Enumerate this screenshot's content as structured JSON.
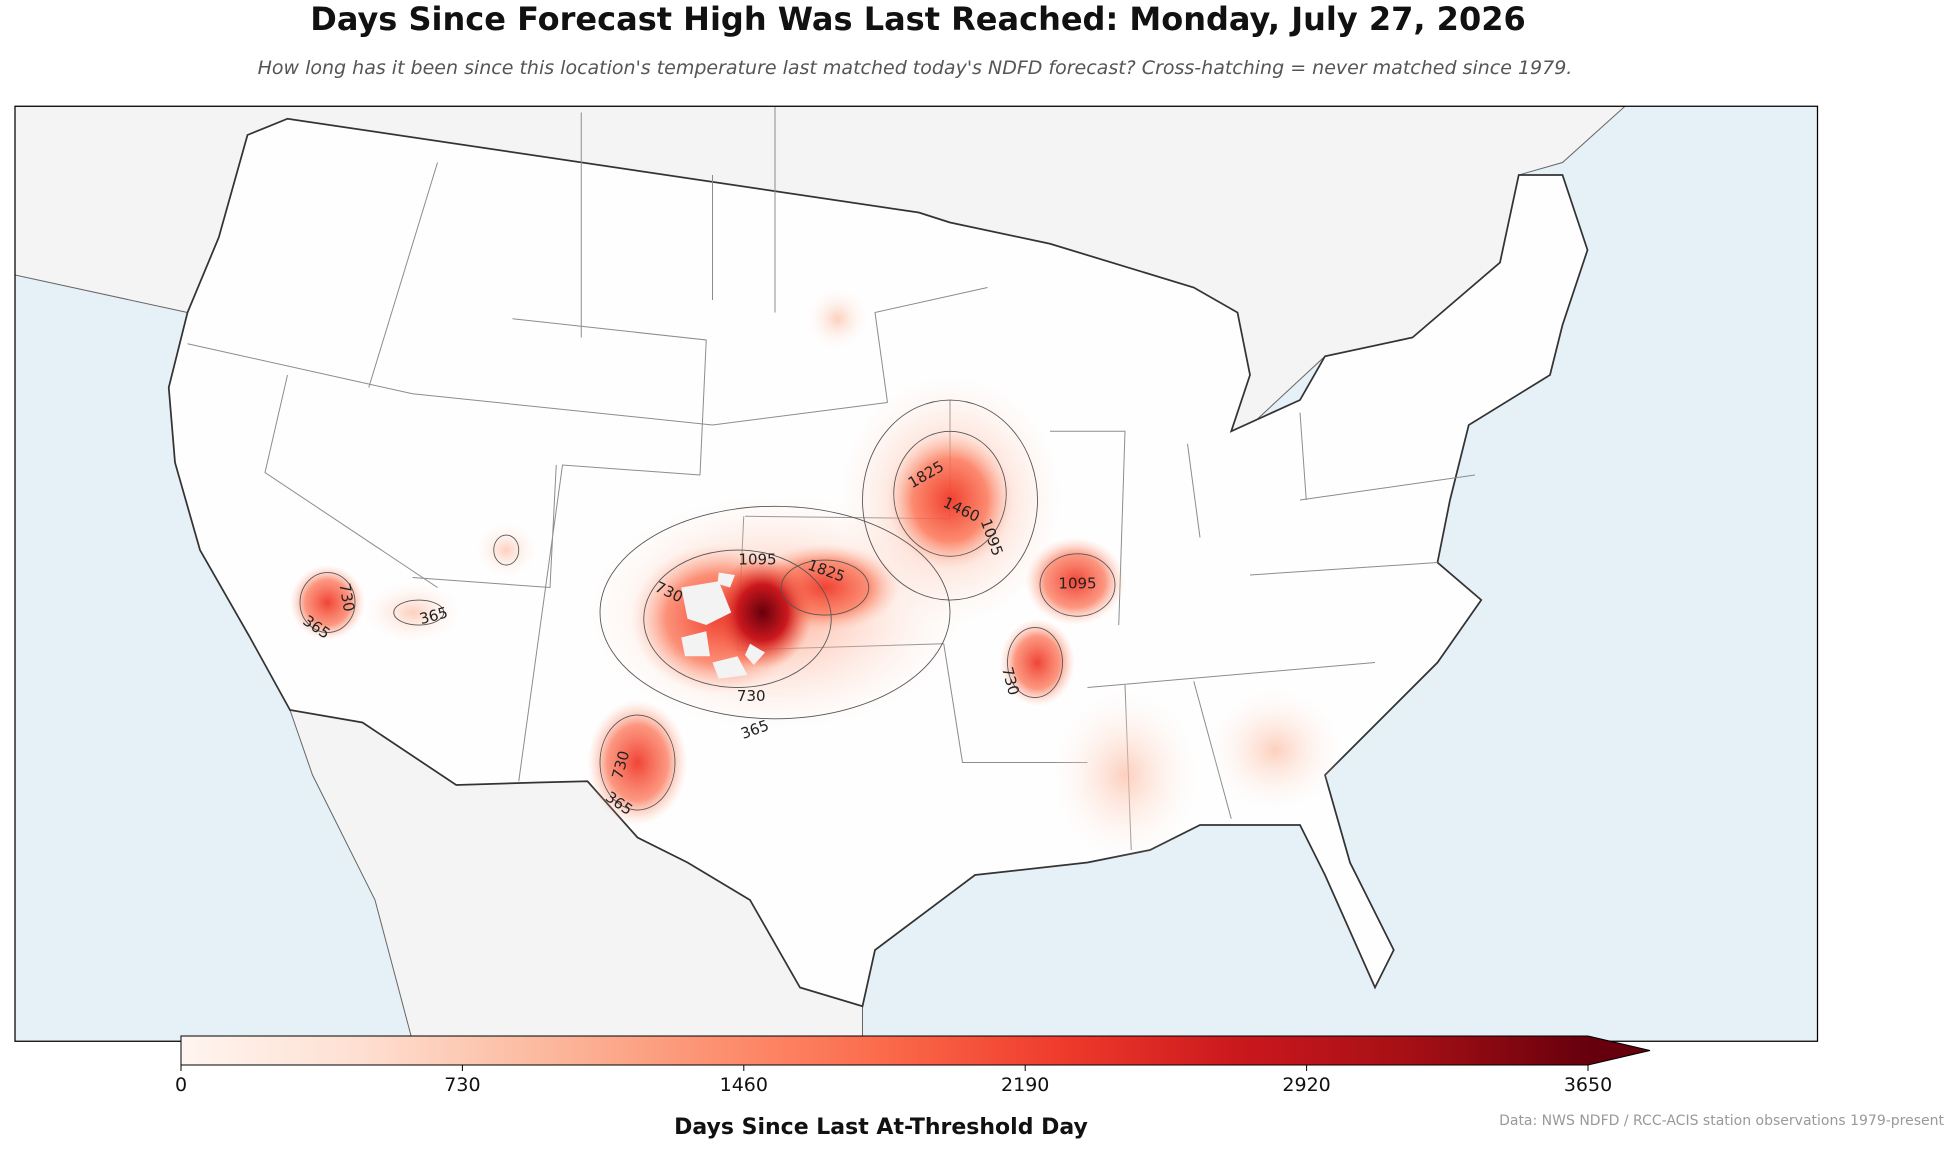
{
  "title": "Days Since Forecast High Was Last Reached: Monday, July 27, 2026",
  "subtitle": "How long has it been since this location's temperature last matched today's NDFD forecast? Cross-hatching = never matched since 1979.",
  "colorbar": {
    "label": "Days Since Last At-Threshold Day",
    "lim": [
      0,
      3650
    ],
    "ticks": [
      0,
      730,
      1460,
      2190,
      2920,
      3650
    ]
  },
  "contour_labels": [
    730,
    365,
    365,
    1095,
    1825,
    730,
    730,
    365,
    730,
    365,
    1825,
    1460,
    1095,
    1095,
    730
  ],
  "source": "Data: NWS NDFD / RCC-ACIS station observations 1979-present"
}
